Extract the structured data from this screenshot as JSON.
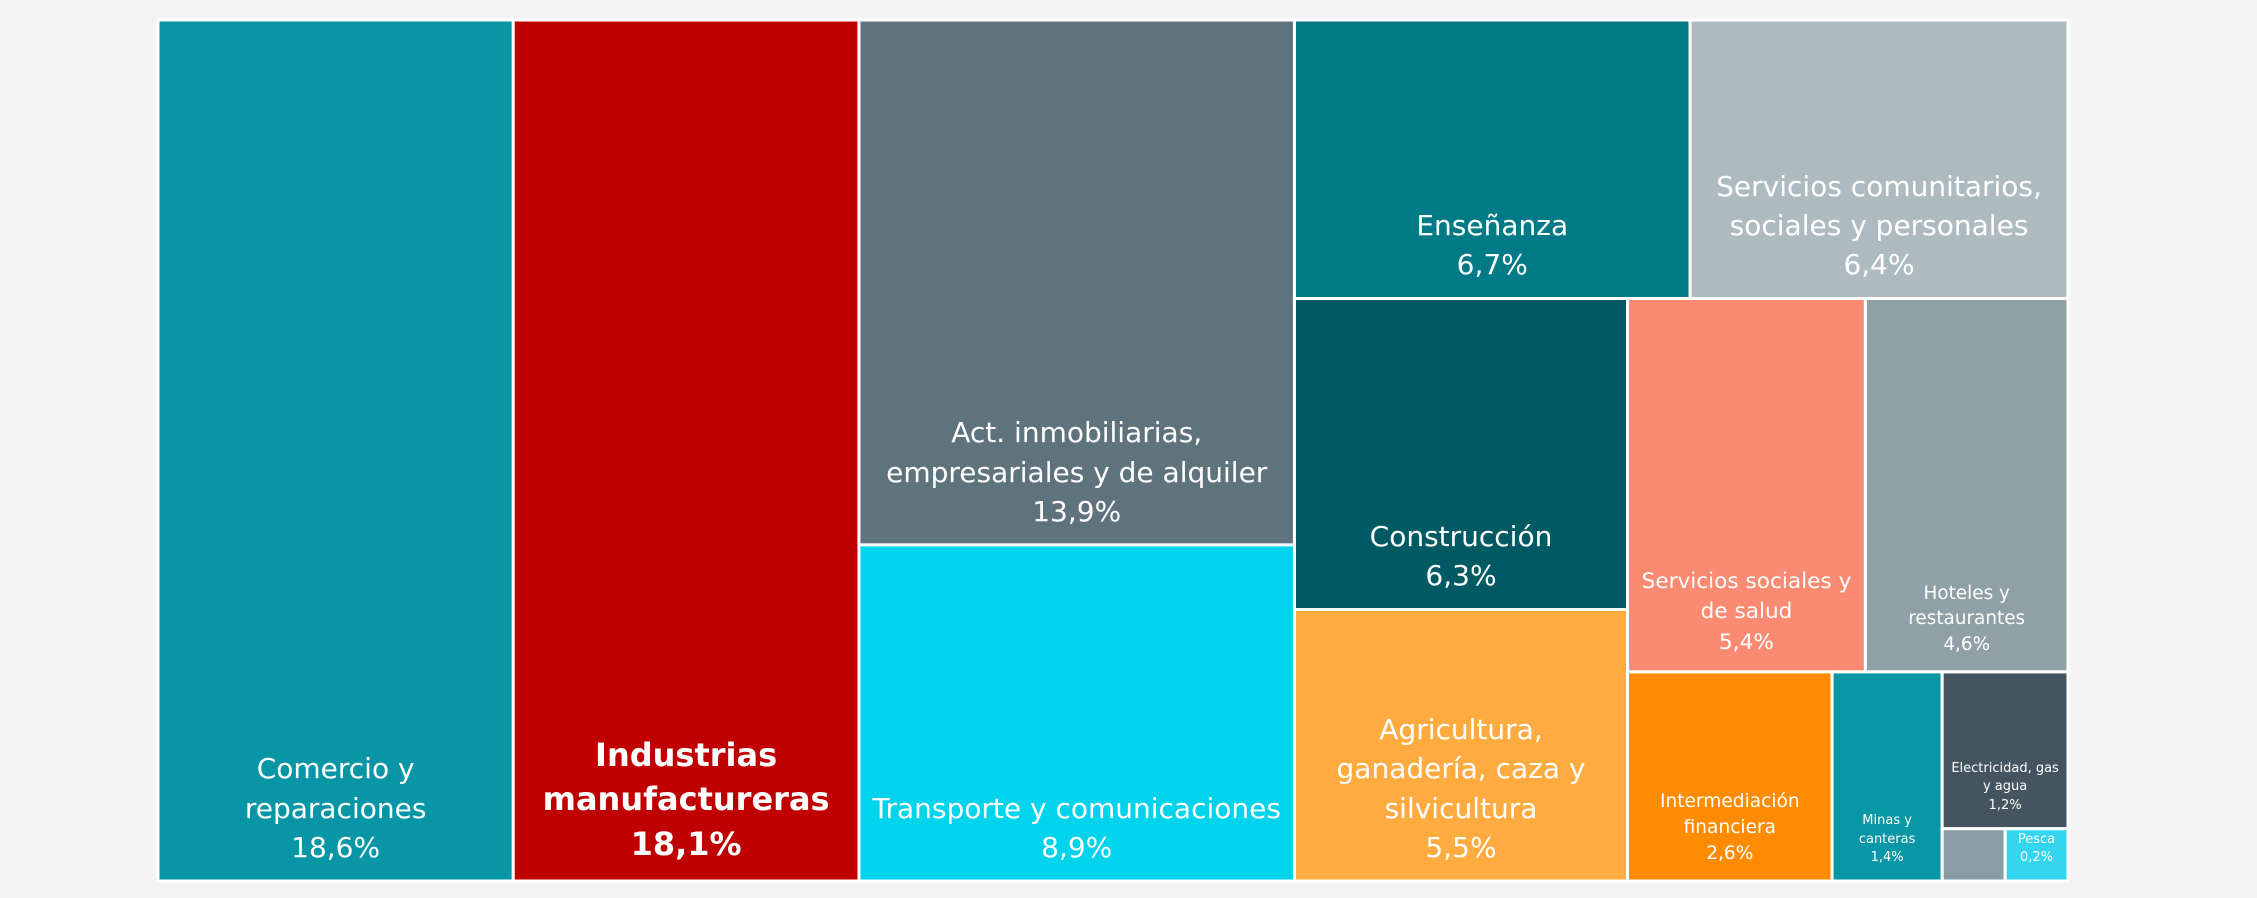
{
  "chart_data": {
    "type": "treemap",
    "categories": [
      "Comercio y reparaciones",
      "Industrias manufactureras",
      "Act. inmobiliarias, empresariales y de alquiler",
      "Transporte y comunicaciones",
      "Enseñanza",
      "Servicios comunitarios, sociales y personales",
      "Construcción",
      "Agricultura, ganadería, caza y silvicultura",
      "Servicios sociales y de salud",
      "Hoteles y restaurantes",
      "Intermediación financiera",
      "Minas y canteras",
      "Electricidad, gas y agua",
      "Pesca",
      null
    ],
    "values": [
      18.6,
      18.1,
      13.9,
      8.9,
      6.7,
      6.4,
      6.3,
      5.5,
      5.4,
      4.6,
      2.6,
      1.4,
      1.2,
      0.2,
      0.2
    ],
    "value_labels": [
      "18,6%",
      "18,1%",
      "13,9%",
      "8,9%",
      "6,7%",
      "6,4%",
      "6,3%",
      "5,5%",
      "5,4%",
      "4,6%",
      "2,6%",
      "1,4%",
      "1,2%",
      "0,2%",
      null
    ],
    "colors": [
      "#0896a6",
      "#c00000",
      "#5f737d",
      "#00d3ec",
      "#007a87",
      "#adbbc1",
      "#005a63",
      "#ffab40",
      "#fa8a72",
      "#90a0a7",
      "#ff8c00",
      "#0897a6",
      "#455560",
      "#33d6ee",
      "#8a9ca5"
    ]
  }
}
